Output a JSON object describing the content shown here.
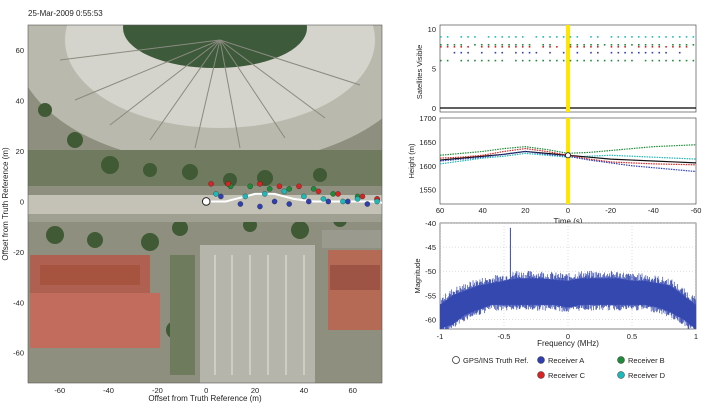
{
  "timestamp": "25-Mar-2009 0:55:53",
  "colors": {
    "truth": "#ffffff",
    "receiver_a": "#2f3fb0",
    "receiver_b": "#1f8a3a",
    "receiver_c": "#d62424",
    "receiver_d": "#1fb8b8",
    "spectrum": "#3549b0",
    "time_marker": "#ffe600"
  },
  "legend": {
    "entries": [
      {
        "key": "truth",
        "label": "GPS/INS Truth Ref."
      },
      {
        "key": "receiver_a",
        "label": "Receiver A"
      },
      {
        "key": "receiver_b",
        "label": "Receiver B"
      },
      {
        "key": "receiver_c",
        "label": "Receiver C"
      },
      {
        "key": "receiver_d",
        "label": "Receiver D"
      }
    ]
  },
  "chart_data": [
    {
      "id": "map",
      "type": "scatter",
      "xlabel": "Offset from Truth Reference (m)",
      "ylabel": "Offset from Truth Reference (m)",
      "xlim": [
        -73,
        72
      ],
      "ylim": [
        -72,
        70
      ],
      "xticks": [
        -60,
        -40,
        -20,
        0,
        20,
        40,
        60
      ],
      "yticks": [
        60,
        40,
        20,
        0,
        -20,
        -40,
        -60
      ],
      "background": "aerial image (stadium, roads, parking lot)",
      "truth_marker": [
        0,
        0
      ],
      "series": [
        {
          "key": "truth",
          "name": "GPS/INS Truth Ref.",
          "points": [
            [
              0,
              0
            ],
            [
              4,
              0
            ],
            [
              8,
              0
            ],
            [
              12,
              1
            ],
            [
              16,
              2
            ],
            [
              20,
              3
            ],
            [
              24,
              3
            ],
            [
              28,
              3
            ],
            [
              32,
              2
            ],
            [
              36,
              1
            ],
            [
              40,
              0.5
            ],
            [
              44,
              0
            ],
            [
              48,
              0
            ],
            [
              52,
              0
            ],
            [
              56,
              0
            ],
            [
              60,
              0
            ],
            [
              64,
              0
            ],
            [
              68,
              0
            ],
            [
              72,
              -0.5
            ]
          ]
        },
        {
          "key": "receiver_a",
          "name": "Receiver A",
          "points": [
            [
              6,
              2
            ],
            [
              14,
              -1
            ],
            [
              22,
              -2
            ],
            [
              28,
              0
            ],
            [
              34,
              -1
            ],
            [
              42,
              0
            ],
            [
              50,
              0
            ],
            [
              58,
              0
            ],
            [
              66,
              -1
            ]
          ]
        },
        {
          "key": "receiver_b",
          "name": "Receiver B",
          "points": [
            [
              10,
              6
            ],
            [
              18,
              6
            ],
            [
              26,
              5
            ],
            [
              34,
              5
            ],
            [
              44,
              5
            ],
            [
              52,
              3
            ],
            [
              62,
              2
            ],
            [
              70,
              1
            ]
          ]
        },
        {
          "key": "receiver_c",
          "name": "Receiver C",
          "points": [
            [
              2,
              7
            ],
            [
              9,
              7
            ],
            [
              22,
              7
            ],
            [
              30,
              6
            ],
            [
              38,
              6
            ],
            [
              46,
              4
            ],
            [
              54,
              3
            ],
            [
              64,
              2
            ],
            [
              70,
              1
            ]
          ]
        },
        {
          "key": "receiver_d",
          "name": "Receiver D",
          "points": [
            [
              4,
              3
            ],
            [
              16,
              2
            ],
            [
              24,
              3
            ],
            [
              32,
              4
            ],
            [
              40,
              2
            ],
            [
              48,
              1
            ],
            [
              56,
              0
            ],
            [
              62,
              1
            ],
            [
              70,
              0
            ]
          ]
        }
      ]
    },
    {
      "id": "satellites",
      "type": "scatter",
      "ylabel": "Satellites Visible",
      "xlim": [
        60,
        -60
      ],
      "ylim": [
        0,
        10
      ],
      "yticks": [
        0,
        5,
        10
      ],
      "time_marker": 0,
      "series": [
        {
          "key": "receiver_d",
          "name": "Receiver D",
          "level": 9
        },
        {
          "key": "receiver_b",
          "name": "Receiver B",
          "level": 8
        },
        {
          "key": "receiver_c",
          "name": "Receiver C",
          "level": 8
        },
        {
          "key": "receiver_a",
          "name": "Receiver A",
          "level": 7
        },
        {
          "key": "receiver_b",
          "name": "Receiver B",
          "level": 6
        }
      ]
    },
    {
      "id": "height",
      "type": "line",
      "xlabel": "Time (s)",
      "ylabel": "Height (m)",
      "xlim": [
        60,
        -60
      ],
      "ylim": [
        1520,
        1700
      ],
      "xticks": [
        60,
        40,
        20,
        0,
        -20,
        -40,
        -60
      ],
      "yticks": [
        1700,
        1650,
        1600,
        1550
      ],
      "time_marker": 0,
      "x": [
        60,
        50,
        40,
        30,
        20,
        10,
        0,
        -10,
        -20,
        -30,
        -40,
        -50,
        -60
      ],
      "series": [
        {
          "key": "receiver_b",
          "name": "Receiver B",
          "values": [
            1622,
            1626,
            1630,
            1636,
            1640,
            1634,
            1626,
            1628,
            1632,
            1636,
            1640,
            1642,
            1644
          ]
        },
        {
          "key": "receiver_d",
          "name": "Receiver D",
          "values": [
            1604,
            1610,
            1616,
            1620,
            1626,
            1622,
            1618,
            1620,
            1622,
            1620,
            1618,
            1616,
            1614
          ]
        },
        {
          "key": "truth",
          "name": "GPS/INS Truth Ref.",
          "values": [
            1612,
            1616,
            1620,
            1624,
            1630,
            1626,
            1622,
            1618,
            1614,
            1612,
            1610,
            1608,
            1606
          ]
        },
        {
          "key": "receiver_c",
          "name": "Receiver C",
          "values": [
            1616,
            1618,
            1622,
            1630,
            1636,
            1630,
            1622,
            1614,
            1608,
            1606,
            1604,
            1603,
            1602
          ]
        },
        {
          "key": "receiver_a",
          "name": "Receiver A",
          "values": [
            1610,
            1614,
            1618,
            1624,
            1630,
            1624,
            1620,
            1612,
            1606,
            1600,
            1596,
            1592,
            1588
          ]
        }
      ]
    },
    {
      "id": "spectrum",
      "type": "area",
      "xlabel": "Frequency (MHz)",
      "ylabel": "Magnitude",
      "xlim": [
        -1,
        1
      ],
      "ylim": [
        -62,
        -40
      ],
      "xticks": [
        -1,
        -0.5,
        0,
        0.5,
        1
      ],
      "yticks": [
        -40,
        -45,
        -50,
        -55,
        -60
      ],
      "x": [
        -1,
        -0.9,
        -0.8,
        -0.7,
        -0.6,
        -0.5,
        -0.4,
        -0.3,
        -0.2,
        -0.1,
        0,
        0.1,
        0.2,
        0.3,
        0.4,
        0.5,
        0.6,
        0.7,
        0.8,
        0.9,
        1
      ],
      "upper": [
        -57,
        -55,
        -54,
        -53,
        -52.5,
        -52,
        -51.5,
        -51.5,
        -51.5,
        -51.8,
        -52,
        -51.5,
        -51.5,
        -51.5,
        -51.5,
        -52,
        -52,
        -52.5,
        -53,
        -55,
        -57
      ],
      "lower": [
        -62,
        -61,
        -59,
        -58,
        -57,
        -57,
        -57,
        -57,
        -57,
        -57,
        -57.5,
        -57,
        -57,
        -57,
        -57,
        -57,
        -57,
        -57.5,
        -58.5,
        -60,
        -62
      ],
      "spikes": [
        {
          "x": -0.45,
          "value": -41
        },
        {
          "x": -0.4,
          "value": -50
        }
      ]
    }
  ]
}
